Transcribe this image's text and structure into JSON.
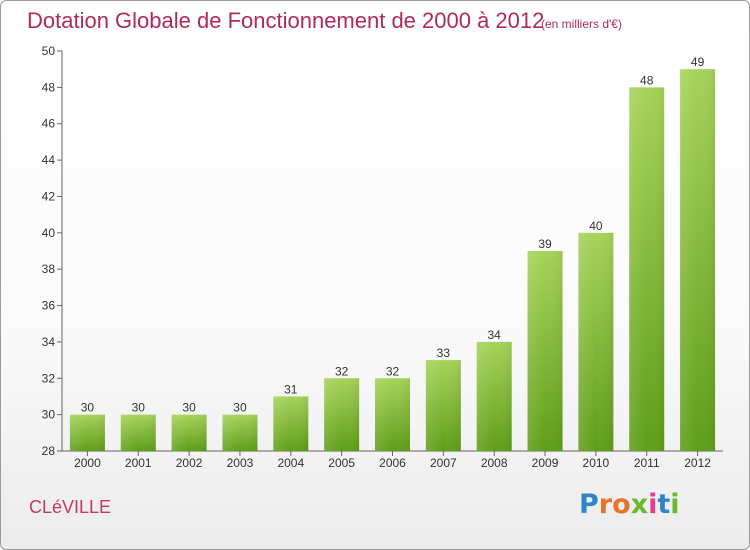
{
  "header": {
    "title": "Dotation Globale de Fonctionnement de 2000 à 2012",
    "unit": "(en milliers d'€)"
  },
  "footer": {
    "commune": "CLéVILLE",
    "logo_text": "Proxiti"
  },
  "colors": {
    "title": "#b02a5c",
    "bar_light": "#a6d35a",
    "bar_dark": "#5f9e19",
    "logo": [
      "#2e86c8",
      "#e8742a",
      "#e8742a",
      "#6ab82e",
      "#e83c8c",
      "#2e86c8",
      "#6ab82e"
    ]
  },
  "chart_data": {
    "type": "bar",
    "title": "Dotation Globale de Fonctionnement de 2000 à 2012",
    "subtitle": "(en milliers d'€)",
    "categories": [
      "2000",
      "2001",
      "2002",
      "2003",
      "2004",
      "2005",
      "2006",
      "2007",
      "2008",
      "2009",
      "2010",
      "2011",
      "2012"
    ],
    "values": [
      30,
      30,
      30,
      30,
      31,
      32,
      32,
      33,
      34,
      39,
      40,
      48,
      49
    ],
    "ylim": [
      28,
      50
    ],
    "yticks": [
      28,
      30,
      32,
      34,
      36,
      38,
      40,
      42,
      44,
      46,
      48,
      50
    ],
    "grid": false,
    "data_labels": true
  }
}
